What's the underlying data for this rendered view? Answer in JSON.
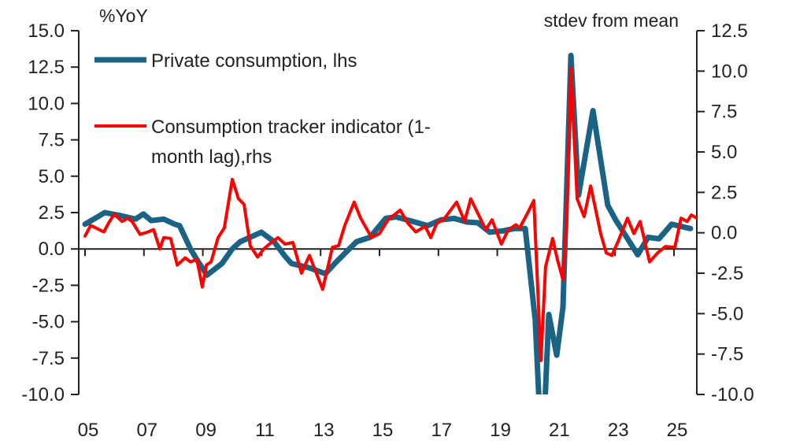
{
  "chart_data": {
    "type": "line",
    "title": "",
    "left_axis": {
      "unit_label": "%YoY",
      "ylim": [
        -10.0,
        15.0
      ],
      "ticks": [
        "15.0",
        "12.5",
        "10.0",
        "7.5",
        "5.0",
        "2.5",
        "0.0",
        "-2.5",
        "-5.0",
        "-7.5",
        "-10.0"
      ]
    },
    "right_axis": {
      "unit_label": "stdev from mean",
      "ylim": [
        -10.0,
        12.5
      ],
      "ticks": [
        "12.5",
        "10.0",
        "7.5",
        "5.0",
        "2.5",
        "0.0",
        "-2.5",
        "-5.0",
        "-7.5",
        "-10.0"
      ]
    },
    "x_axis": {
      "xlim": [
        2004.7,
        2026.0
      ],
      "ticks": [
        {
          "year": 2005,
          "label": "05"
        },
        {
          "year": 2007,
          "label": "07"
        },
        {
          "year": 2009,
          "label": "09"
        },
        {
          "year": 2011,
          "label": "11"
        },
        {
          "year": 2013,
          "label": "13"
        },
        {
          "year": 2015,
          "label": "15"
        },
        {
          "year": 2017,
          "label": "17"
        },
        {
          "year": 2019,
          "label": "19"
        },
        {
          "year": 2021,
          "label": "21"
        },
        {
          "year": 2023,
          "label": "23"
        },
        {
          "year": 2025,
          "label": "25"
        }
      ]
    },
    "grid": false,
    "legend_placement": "top-left",
    "series": [
      {
        "name": "Private consumption, lhs",
        "axis": "left",
        "color": "#1b6384",
        "points": [
          [
            2005.0,
            1.7
          ],
          [
            2005.67,
            2.5
          ],
          [
            2006.18,
            2.3
          ],
          [
            2006.71,
            2.05
          ],
          [
            2006.98,
            2.4
          ],
          [
            2007.25,
            1.95
          ],
          [
            2007.67,
            2.05
          ],
          [
            2008.05,
            1.7
          ],
          [
            2008.21,
            1.6
          ],
          [
            2008.58,
            0.0
          ],
          [
            2008.85,
            -0.9
          ],
          [
            2009.14,
            -1.8
          ],
          [
            2009.65,
            -1.0
          ],
          [
            2010.0,
            0.0
          ],
          [
            2010.27,
            0.5
          ],
          [
            2010.99,
            1.15
          ],
          [
            2011.42,
            0.5
          ],
          [
            2011.79,
            -0.5
          ],
          [
            2012.01,
            -1.0
          ],
          [
            2012.62,
            -1.3
          ],
          [
            2013.16,
            -1.7
          ],
          [
            2013.53,
            -0.9
          ],
          [
            2014.22,
            0.5
          ],
          [
            2014.68,
            0.8
          ],
          [
            2015.21,
            2.1
          ],
          [
            2015.56,
            2.2
          ],
          [
            2016.2,
            1.85
          ],
          [
            2016.63,
            1.6
          ],
          [
            2017.09,
            2.0
          ],
          [
            2017.54,
            2.1
          ],
          [
            2017.97,
            1.85
          ],
          [
            2018.34,
            1.8
          ],
          [
            2018.74,
            1.15
          ],
          [
            2019.22,
            1.25
          ],
          [
            2019.57,
            1.4
          ],
          [
            2019.95,
            1.4
          ],
          [
            2020.29,
            -4.9
          ],
          [
            2020.43,
            -11.0
          ],
          [
            2020.61,
            -11.0
          ],
          [
            2020.75,
            -4.5
          ],
          [
            2021.02,
            -7.3
          ],
          [
            2021.23,
            -4.0
          ],
          [
            2021.5,
            13.3
          ],
          [
            2021.76,
            3.7
          ],
          [
            2022.25,
            9.5
          ],
          [
            2022.75,
            3.0
          ],
          [
            2023.02,
            2.0
          ],
          [
            2023.77,
            -0.4
          ],
          [
            2024.12,
            0.8
          ],
          [
            2024.49,
            0.7
          ],
          [
            2024.92,
            1.7
          ],
          [
            2025.56,
            1.4
          ]
        ]
      },
      {
        "name": "Consumption tracker indicator (1-month lag),rhs",
        "legend_lines": [
          "Consumption tracker indicator (1-",
          "month lag),rhs"
        ],
        "axis": "right",
        "color": "#ff0000",
        "points": [
          [
            2005.0,
            -0.2
          ],
          [
            2005.19,
            0.45
          ],
          [
            2005.37,
            0.3
          ],
          [
            2005.64,
            0.05
          ],
          [
            2005.8,
            0.6
          ],
          [
            2005.99,
            1.15
          ],
          [
            2006.26,
            0.7
          ],
          [
            2006.44,
            0.9
          ],
          [
            2006.6,
            0.7
          ],
          [
            2006.87,
            -0.1
          ],
          [
            2007.14,
            0.05
          ],
          [
            2007.33,
            0.2
          ],
          [
            2007.54,
            -1.0
          ],
          [
            2007.67,
            -0.3
          ],
          [
            2007.91,
            -0.35
          ],
          [
            2008.13,
            -2.0
          ],
          [
            2008.4,
            -1.55
          ],
          [
            2008.58,
            -1.8
          ],
          [
            2008.8,
            -1.65
          ],
          [
            2008.98,
            -3.35
          ],
          [
            2009.12,
            -2.0
          ],
          [
            2009.28,
            -1.8
          ],
          [
            2009.52,
            -0.3
          ],
          [
            2009.73,
            0.3
          ],
          [
            2010.0,
            3.3
          ],
          [
            2010.21,
            2.1
          ],
          [
            2010.4,
            1.75
          ],
          [
            2010.61,
            -0.8
          ],
          [
            2010.86,
            -1.5
          ],
          [
            2011.07,
            -1.0
          ],
          [
            2011.26,
            -0.7
          ],
          [
            2011.55,
            -0.3
          ],
          [
            2011.79,
            -0.7
          ],
          [
            2012.06,
            -0.6
          ],
          [
            2012.35,
            -2.5
          ],
          [
            2012.62,
            -1.4
          ],
          [
            2013.07,
            -3.5
          ],
          [
            2013.4,
            -0.9
          ],
          [
            2013.61,
            -0.8
          ],
          [
            2013.82,
            0.45
          ],
          [
            2014.14,
            1.9
          ],
          [
            2014.36,
            0.9
          ],
          [
            2014.73,
            -0.3
          ],
          [
            2015.0,
            -0.05
          ],
          [
            2015.29,
            0.8
          ],
          [
            2015.7,
            1.4
          ],
          [
            2015.96,
            0.6
          ],
          [
            2016.23,
            0.05
          ],
          [
            2016.55,
            0.4
          ],
          [
            2016.74,
            -0.3
          ],
          [
            2016.95,
            0.6
          ],
          [
            2017.17,
            0.8
          ],
          [
            2017.62,
            1.9
          ],
          [
            2017.89,
            0.7
          ],
          [
            2018.1,
            2.1
          ],
          [
            2018.34,
            1.2
          ],
          [
            2018.61,
            0.2
          ],
          [
            2018.82,
            0.8
          ],
          [
            2019.14,
            -0.7
          ],
          [
            2019.36,
            0.15
          ],
          [
            2019.63,
            0.5
          ],
          [
            2019.76,
            0.3
          ],
          [
            2020.08,
            1.4
          ],
          [
            2020.24,
            2.0
          ],
          [
            2020.48,
            -7.9
          ],
          [
            2020.64,
            -2.1
          ],
          [
            2020.88,
            -0.35
          ],
          [
            2021.04,
            -1.65
          ],
          [
            2021.23,
            -2.9
          ],
          [
            2021.36,
            1.1
          ],
          [
            2021.5,
            10.2
          ],
          [
            2021.71,
            2.1
          ],
          [
            2021.95,
            1.0
          ],
          [
            2022.17,
            2.9
          ],
          [
            2022.51,
            -0.05
          ],
          [
            2022.7,
            -1.25
          ],
          [
            2022.89,
            -1.4
          ],
          [
            2023.1,
            -0.55
          ],
          [
            2023.42,
            0.9
          ],
          [
            2023.64,
            -0.05
          ],
          [
            2023.85,
            0.7
          ],
          [
            2024.17,
            -1.8
          ],
          [
            2024.44,
            -1.25
          ],
          [
            2024.71,
            -0.85
          ],
          [
            2025.03,
            -0.9
          ],
          [
            2025.24,
            0.9
          ],
          [
            2025.45,
            0.7
          ],
          [
            2025.59,
            1.1
          ],
          [
            2025.78,
            0.9
          ]
        ]
      }
    ]
  }
}
